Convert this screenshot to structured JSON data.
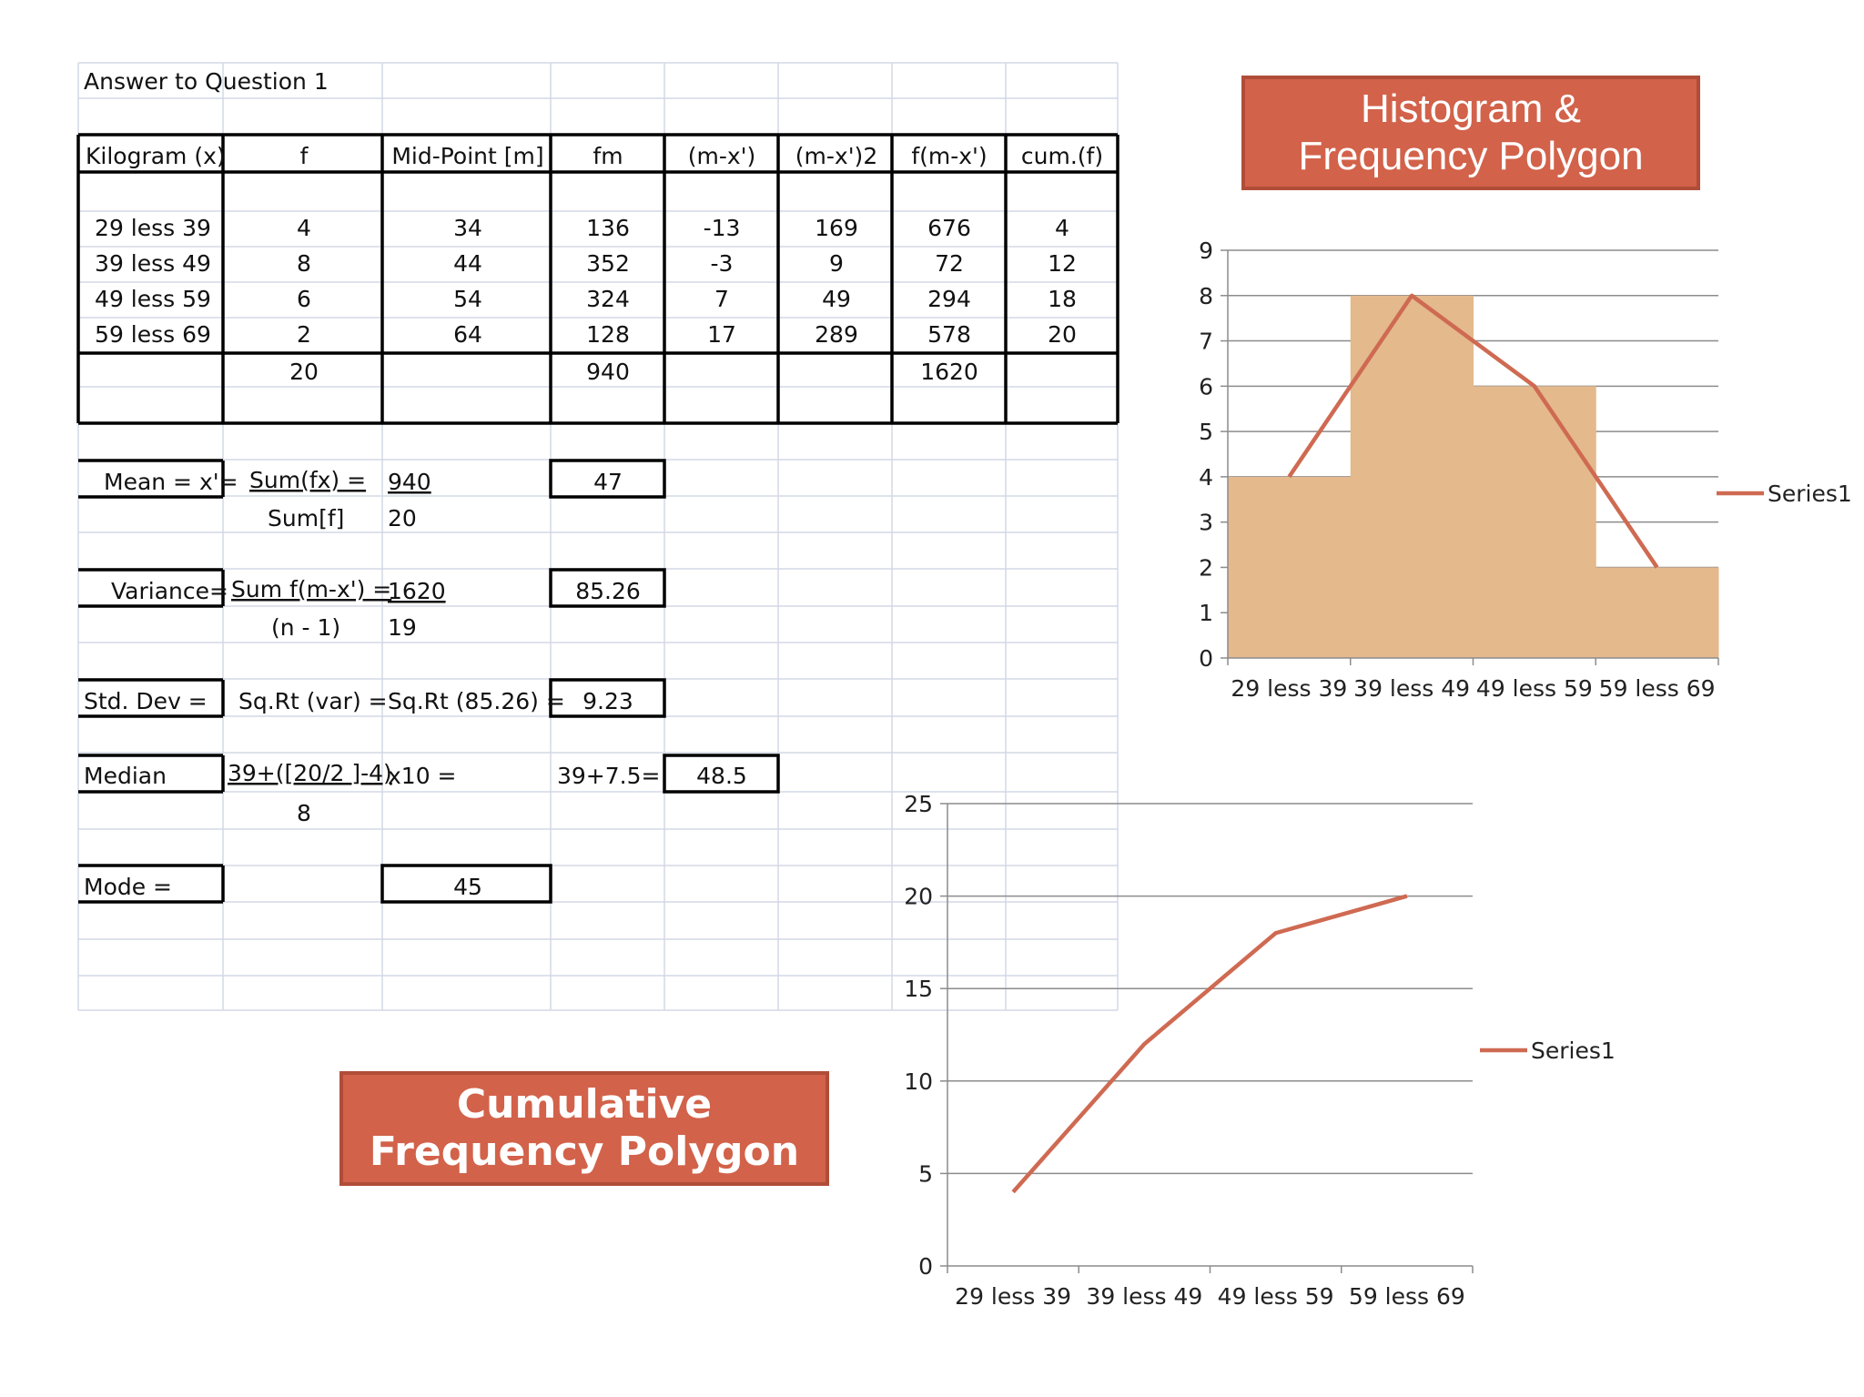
{
  "title_cell": "Answer to Question 1",
  "table": {
    "headers": [
      "Kilogram (x)",
      "f",
      "Mid-Point [m]",
      "fm",
      "(m-x')",
      "(m-x')2",
      "f(m-x')",
      "cum.(f)"
    ],
    "rows": [
      [
        "29 less 39",
        "4",
        "34",
        "136",
        "-13",
        "169",
        "676",
        "4"
      ],
      [
        "39 less 49",
        "8",
        "44",
        "352",
        "-3",
        "9",
        "72",
        "12"
      ],
      [
        "49 less 59",
        "6",
        "54",
        "324",
        "7",
        "49",
        "294",
        "18"
      ],
      [
        "59 less 69",
        "2",
        "64",
        "128",
        "17",
        "289",
        "578",
        "20"
      ]
    ],
    "totals": {
      "f": "20",
      "fm": "940",
      "fmx": "1620"
    }
  },
  "calc": {
    "mean": {
      "label": "Mean = x'=",
      "num_label": "Sum(fx)  =",
      "num_value": "940",
      "den_label": "Sum[f]",
      "den_value": "20",
      "result": "47"
    },
    "variance": {
      "label": "Variance=",
      "num_label": "Sum f(m-x') =",
      "num_value": "1620",
      "den_label": "(n - 1)",
      "den_value": "19",
      "result": "85.26"
    },
    "stddev": {
      "label": "Std. Dev =",
      "expr1": "Sq.Rt (var) =",
      "expr2": "Sq.Rt (85.26) =",
      "result": "9.23"
    },
    "median": {
      "label": "Median",
      "expr1": "39+([20/2 ]-4)",
      "expr2": "x10 =",
      "expr3": "39+7.5=",
      "den": "8",
      "result": "48.5"
    },
    "mode": {
      "label": "Mode  =",
      "result": "45"
    }
  },
  "banners": {
    "histogram": [
      "Histogram &",
      "Frequency Polygon"
    ],
    "cumulative": [
      "Cumulative",
      "Frequency Polygon"
    ]
  },
  "colors": {
    "bar": "#e4b98c",
    "line": "#cf6a52",
    "banner": "#d2624a",
    "grid": "#8c8c8c"
  },
  "chart_data": [
    {
      "type": "bar",
      "categories": [
        "29 less 39",
        "39 less 49",
        "49 less 59",
        "59 less 69"
      ],
      "values": [
        4,
        8,
        6,
        2
      ],
      "series": [
        {
          "name": "Series1",
          "values": [
            4,
            8,
            6,
            2
          ],
          "render": "line"
        }
      ],
      "ylim": [
        0,
        9
      ],
      "yticks": [
        0,
        1,
        2,
        3,
        4,
        5,
        6,
        7,
        8,
        9
      ],
      "grid": true,
      "legend": "right"
    },
    {
      "type": "line",
      "categories": [
        "29 less 39",
        "39 less 49",
        "49 less 59",
        "59 less 69"
      ],
      "series": [
        {
          "name": "Series1",
          "values": [
            4,
            12,
            18,
            20
          ]
        }
      ],
      "ylim": [
        0,
        25
      ],
      "yticks": [
        0,
        5,
        10,
        15,
        20,
        25
      ],
      "grid": true,
      "legend": "right"
    }
  ]
}
